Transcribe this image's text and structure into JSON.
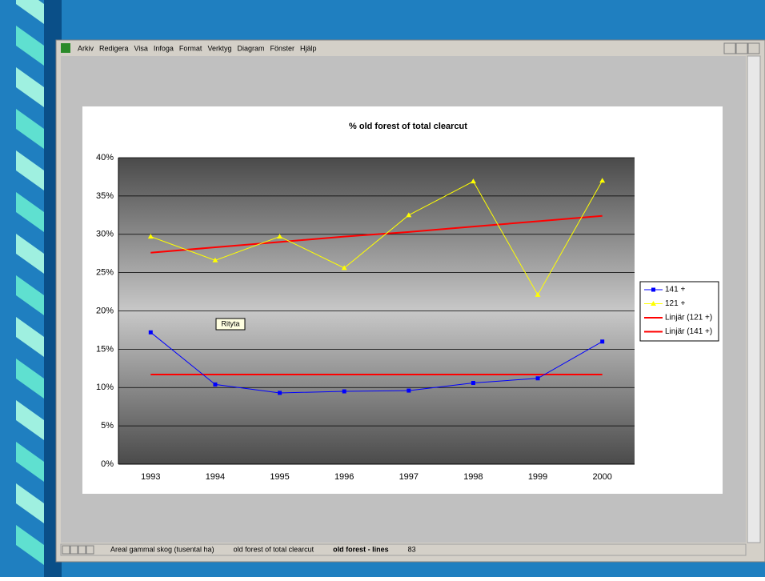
{
  "menu": [
    "Arkiv",
    "Redigera",
    "Visa",
    "Infoga",
    "Format",
    "Verktyg",
    "Diagram",
    "Fönster",
    "Hjälp"
  ],
  "tooltip": "Rityta",
  "tabs": [
    "Areal gammal skog (tusental ha)",
    "old forest of total clearcut",
    "old forest - lines",
    "83"
  ],
  "chart_data": {
    "type": "line",
    "title": "% old forest of total clearcut",
    "categories": [
      "1993",
      "1994",
      "1995",
      "1996",
      "1997",
      "1998",
      "1999",
      "2000"
    ],
    "series": [
      {
        "name": "141 +",
        "color": "#0000ff",
        "marker": "square",
        "values": [
          17.2,
          10.4,
          9.3,
          9.5,
          9.6,
          10.6,
          11.2,
          16.0
        ]
      },
      {
        "name": "121 +",
        "color": "#ffff00",
        "marker": "triangle",
        "values": [
          29.7,
          26.6,
          29.7,
          25.6,
          32.5,
          36.9,
          22.1,
          37.0
        ]
      },
      {
        "name": "Linjär (121 +)",
        "color": "#ff0000",
        "values": [
          27.6,
          28.3,
          29.0,
          29.7,
          30.3,
          31.0,
          31.7,
          32.4
        ]
      },
      {
        "name": "Linjär (141 +)",
        "color": "#ff0000",
        "values": [
          11.7,
          11.7,
          11.7,
          11.7,
          11.7,
          11.7,
          11.7,
          11.7
        ]
      }
    ],
    "ylim": [
      0,
      40
    ],
    "yticks": [
      {
        "value": 0,
        "label": "0%"
      },
      {
        "value": 5,
        "label": "5%"
      },
      {
        "value": 10,
        "label": "10%"
      },
      {
        "value": 15,
        "label": "15%"
      },
      {
        "value": 20,
        "label": "20%"
      },
      {
        "value": 25,
        "label": "25%"
      },
      {
        "value": 30,
        "label": "30%"
      },
      {
        "value": 35,
        "label": "35%"
      },
      {
        "value": 40,
        "label": "40%"
      }
    ],
    "grid": true,
    "legend": "right"
  }
}
